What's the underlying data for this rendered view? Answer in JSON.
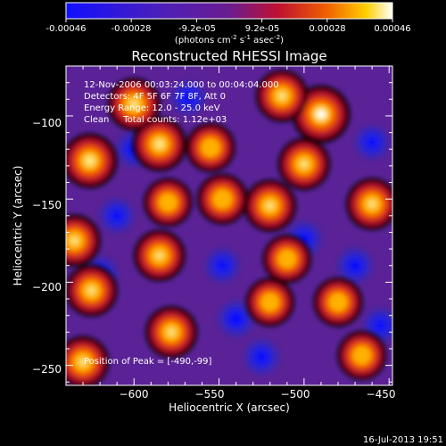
{
  "title": "Reconstructed RHESSI Image",
  "colorbar": {
    "ticks": [
      "-0.00046",
      "-0.00028",
      "-9.2e-05",
      "9.2e-05",
      "0.00028",
      "0.00046"
    ],
    "units_prefix": "(photons cm",
    "units_exp1": "-2",
    "units_mid1": " s",
    "units_exp2": "-1",
    "units_mid2": " asec",
    "units_exp3": "-2",
    "units_suffix": ")"
  },
  "annotation": {
    "time_range": "12-Nov-2006 00:03:24.000 to 00:04:04.000",
    "detectors": "Detectors: 4F 5F 6F 7F 8F, Att 0",
    "energy": "Energy Range: 12.0 - 25.0 keV",
    "clean": "Clean     Total counts: 1.12e+03",
    "peak": "Position of Peak = [-490,-99]"
  },
  "footer_timestamp": "16-Jul-2013 19:51",
  "chart_data": {
    "type": "heatmap",
    "title": "Reconstructed RHESSI Image",
    "xlabel": "Heliocentric X (arcsec)",
    "ylabel": "Heliocentric Y (arcsec)",
    "xlim": [
      -640,
      -448
    ],
    "ylim": [
      -262,
      -70
    ],
    "x_ticks": [
      -600,
      -550,
      -500,
      -450
    ],
    "x_tick_labels": [
      "−600",
      "−550",
      "−500",
      "−450"
    ],
    "y_ticks": [
      -100,
      -150,
      -200,
      -250
    ],
    "y_tick_labels": [
      "−100",
      "−150",
      "−200",
      "−250"
    ],
    "colormap": "blue-purple-red-yellow-white",
    "value_range": [
      -0.00046,
      0.00046
    ],
    "peak_position": [
      -490,
      -99
    ],
    "bright_sources": [
      {
        "x": -490,
        "y": -99,
        "value": 0.00046
      },
      {
        "x": -626,
        "y": -127,
        "value": 0.00038
      },
      {
        "x": -585,
        "y": -117,
        "value": 0.00036
      },
      {
        "x": -600,
        "y": -93,
        "value": 0.00032
      },
      {
        "x": -513,
        "y": -88,
        "value": 0.0003
      },
      {
        "x": -520,
        "y": -154,
        "value": 0.0003
      },
      {
        "x": -500,
        "y": -129,
        "value": 0.0003
      },
      {
        "x": -460,
        "y": -153,
        "value": 0.0003
      },
      {
        "x": -585,
        "y": -184,
        "value": 0.00028
      },
      {
        "x": -635,
        "y": -175,
        "value": 0.0003
      },
      {
        "x": -625,
        "y": -205,
        "value": 0.0003
      },
      {
        "x": -578,
        "y": -230,
        "value": 0.0003
      },
      {
        "x": -630,
        "y": -248,
        "value": 0.0003
      },
      {
        "x": -548,
        "y": -150,
        "value": 0.00026
      },
      {
        "x": -555,
        "y": -119,
        "value": 0.00022
      },
      {
        "x": -510,
        "y": -186,
        "value": 0.0002
      },
      {
        "x": -520,
        "y": -212,
        "value": 0.0002
      },
      {
        "x": -480,
        "y": -212,
        "value": 0.00022
      },
      {
        "x": -466,
        "y": -244,
        "value": 0.00022
      },
      {
        "x": -580,
        "y": -152,
        "value": 0.0002
      }
    ],
    "dark_sources": [
      {
        "x": -600,
        "y": -120,
        "value": -0.0004
      },
      {
        "x": -620,
        "y": -195,
        "value": -0.0004
      },
      {
        "x": -540,
        "y": -222,
        "value": -0.00046
      },
      {
        "x": -525,
        "y": -245,
        "value": -0.0004
      },
      {
        "x": -500,
        "y": -174,
        "value": -0.0004
      },
      {
        "x": -470,
        "y": -190,
        "value": -0.0004
      },
      {
        "x": -548,
        "y": -190,
        "value": -0.00035
      },
      {
        "x": -610,
        "y": -160,
        "value": -0.00035
      },
      {
        "x": -568,
        "y": -89,
        "value": -0.00035
      },
      {
        "x": -460,
        "y": -116,
        "value": -0.00035
      },
      {
        "x": -455,
        "y": -226,
        "value": -0.00035
      }
    ]
  }
}
